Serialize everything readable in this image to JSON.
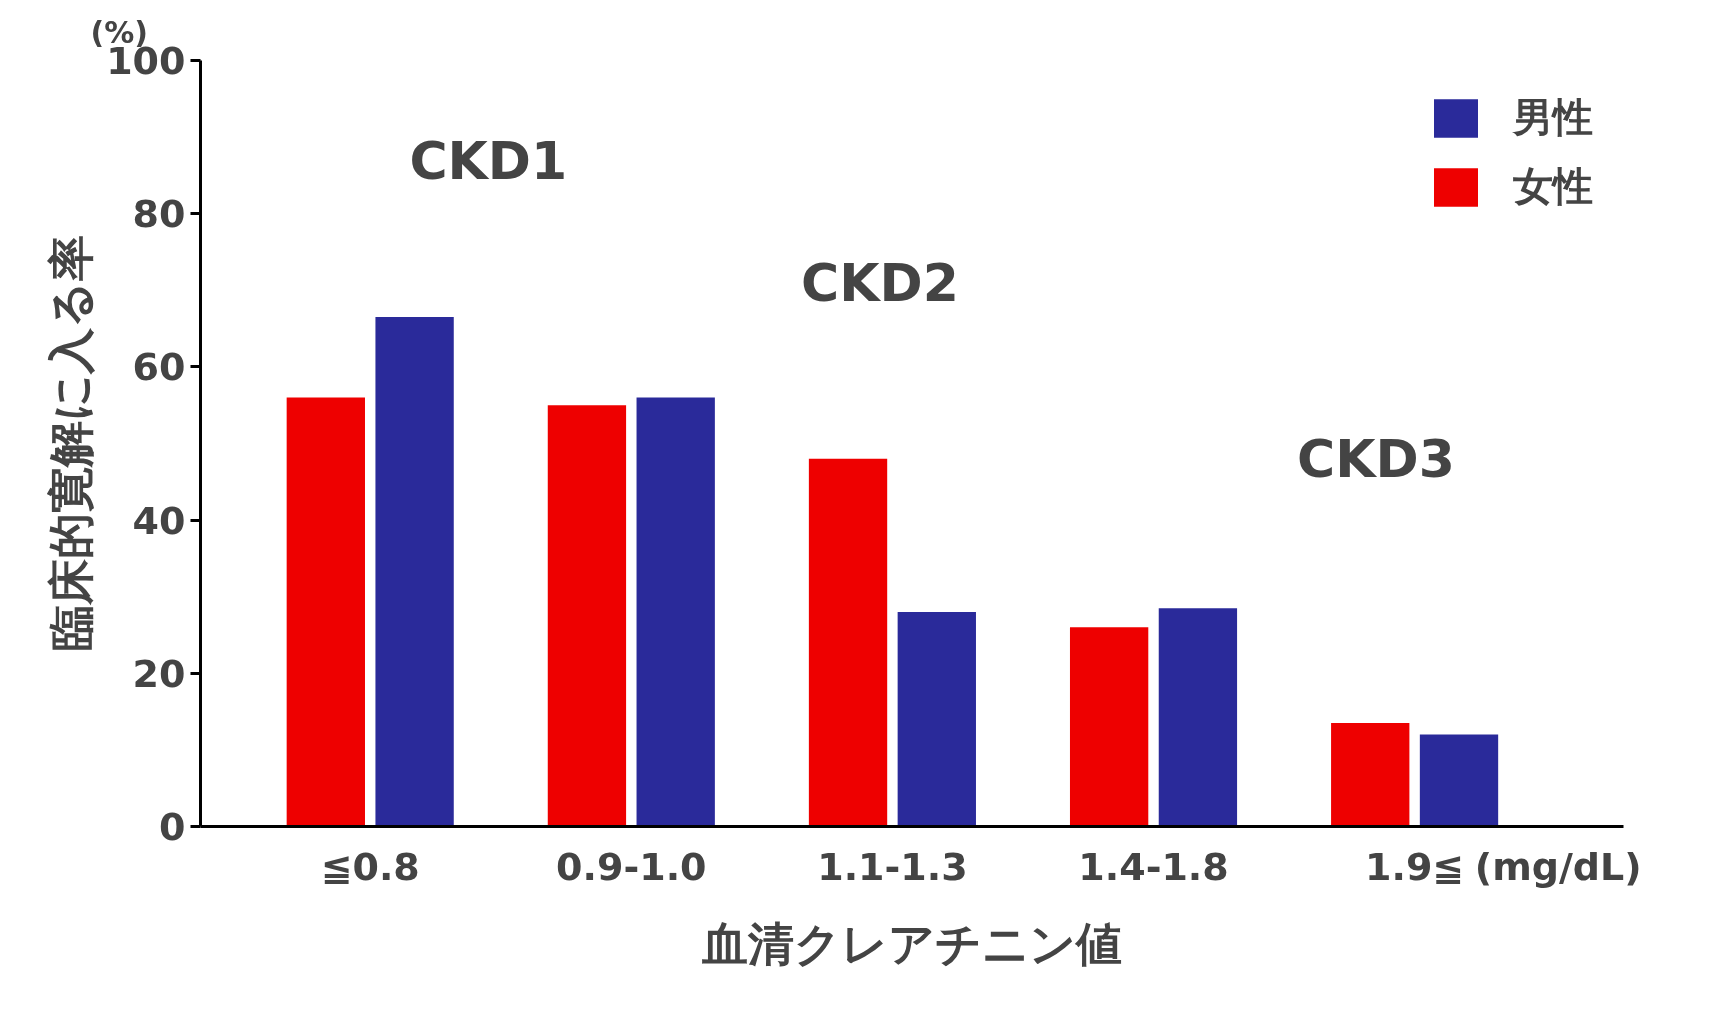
{
  "chart_data": {
    "type": "bar",
    "xlabel": "血清クレアチニン値",
    "ylabel": "臨床的寛解に入る率",
    "categories": [
      "≦0.8",
      "0.9-1.0",
      "1.1-1.3",
      "1.4-1.8",
      "1.9≦"
    ],
    "series": [
      {
        "name": "女性",
        "color": "#ee0000",
        "values": [
          56,
          55,
          48,
          26,
          13.5
        ]
      },
      {
        "name": "男性",
        "color": "#2a2a9a",
        "values": [
          66.5,
          56,
          28,
          28.5,
          12
        ]
      }
    ],
    "ylim": [
      0,
      100
    ],
    "yticks": [
      0,
      20,
      40,
      60,
      80,
      100
    ],
    "grid": false,
    "legend": "top right",
    "annotations": [
      "(%)",
      "CKD1",
      "CKD2",
      "CKD3",
      "(mg/dL)"
    ]
  }
}
